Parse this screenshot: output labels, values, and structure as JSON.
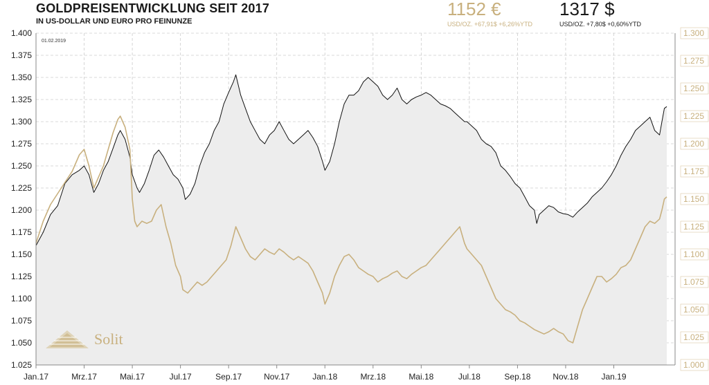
{
  "header": {
    "title": "GOLDPREISENTWICKLUNG SEIT 2017",
    "subtitle": "IN US-DOLLAR UND EURO PRO FEINUNZE",
    "eur_price": "1152 €",
    "eur_sub": "USD/OZ.  +67,91$  +6,26%YTD",
    "usd_price": "1317 $",
    "usd_sub": "USD/OZ.  +7,80$  +0,60%YTD",
    "date": "01.02.2019",
    "brand": "Solit"
  },
  "colors": {
    "usd": "#111111",
    "eur": "#c8b07e",
    "area": "#ededed",
    "grid": "#cccccc"
  },
  "chart_data": {
    "type": "line",
    "x_labels": [
      "Jan.17",
      "Mrz.17",
      "Mai.17",
      "Jul.17",
      "Sep.17",
      "Nov.17",
      "Jan.18",
      "Mrz.18",
      "Mai.18",
      "Jul.18",
      "Sep.18",
      "Nov.18",
      "Jan.19"
    ],
    "x_range": [
      0,
      25
    ],
    "y_left": {
      "ylim": [
        1.025,
        1.4
      ],
      "ticks": [
        "1.025",
        "1.050",
        "1.075",
        "1.100",
        "1.125",
        "1.150",
        "1.175",
        "1.200",
        "1.225",
        "1.250",
        "1.275",
        "1.300",
        "1.325",
        "1.350",
        "1.375",
        "1.400"
      ]
    },
    "y_right": {
      "ylim": [
        1.0,
        1.3
      ],
      "ticks": [
        "1.000",
        "1.025",
        "1.050",
        "1.075",
        "1.100",
        "1.125",
        "1.150",
        "1.175",
        "1.200",
        "1.225",
        "1.250",
        "1.275",
        "1.300"
      ]
    },
    "grid": true,
    "series": [
      {
        "axis": "left",
        "fill": true,
        "points": [
          [
            0,
            1160
          ],
          [
            0.3,
            1175
          ],
          [
            0.6,
            1195
          ],
          [
            0.9,
            1205
          ],
          [
            1.2,
            1230
          ],
          [
            1.5,
            1240
          ],
          [
            1.8,
            1245
          ],
          [
            2,
            1250
          ],
          [
            2.2,
            1240
          ],
          [
            2.4,
            1220
          ],
          [
            2.6,
            1230
          ],
          [
            2.8,
            1245
          ],
          [
            3,
            1255
          ],
          [
            3.2,
            1270
          ],
          [
            3.4,
            1285
          ],
          [
            3.5,
            1290
          ],
          [
            3.7,
            1280
          ],
          [
            3.9,
            1260
          ],
          [
            4.0,
            1240
          ],
          [
            4.2,
            1225
          ],
          [
            4.3,
            1220
          ],
          [
            4.5,
            1230
          ],
          [
            4.7,
            1245
          ],
          [
            4.9,
            1262
          ],
          [
            5.1,
            1268
          ],
          [
            5.3,
            1260
          ],
          [
            5.5,
            1250
          ],
          [
            5.7,
            1240
          ],
          [
            5.9,
            1235
          ],
          [
            6.1,
            1225
          ],
          [
            6.2,
            1212
          ],
          [
            6.4,
            1218
          ],
          [
            6.6,
            1230
          ],
          [
            6.8,
            1250
          ],
          [
            7.0,
            1265
          ],
          [
            7.2,
            1275
          ],
          [
            7.4,
            1290
          ],
          [
            7.6,
            1300
          ],
          [
            7.8,
            1320
          ],
          [
            8.0,
            1333
          ],
          [
            8.2,
            1345
          ],
          [
            8.3,
            1353
          ],
          [
            8.5,
            1330
          ],
          [
            8.7,
            1315
          ],
          [
            8.9,
            1300
          ],
          [
            9.1,
            1290
          ],
          [
            9.3,
            1280
          ],
          [
            9.5,
            1275
          ],
          [
            9.7,
            1285
          ],
          [
            9.9,
            1290
          ],
          [
            10.1,
            1300
          ],
          [
            10.3,
            1290
          ],
          [
            10.5,
            1280
          ],
          [
            10.7,
            1275
          ],
          [
            10.9,
            1280
          ],
          [
            11.1,
            1285
          ],
          [
            11.3,
            1290
          ],
          [
            11.5,
            1282
          ],
          [
            11.7,
            1272
          ],
          [
            11.9,
            1255
          ],
          [
            12.0,
            1245
          ],
          [
            12.2,
            1255
          ],
          [
            12.4,
            1275
          ],
          [
            12.6,
            1300
          ],
          [
            12.8,
            1320
          ],
          [
            13.0,
            1330
          ],
          [
            13.2,
            1330
          ],
          [
            13.4,
            1335
          ],
          [
            13.6,
            1345
          ],
          [
            13.8,
            1350
          ],
          [
            14.0,
            1345
          ],
          [
            14.2,
            1340
          ],
          [
            14.4,
            1330
          ],
          [
            14.6,
            1325
          ],
          [
            14.8,
            1330
          ],
          [
            15.0,
            1338
          ],
          [
            15.2,
            1325
          ],
          [
            15.4,
            1320
          ],
          [
            15.6,
            1325
          ],
          [
            15.8,
            1328
          ],
          [
            16.0,
            1330
          ],
          [
            16.2,
            1333
          ],
          [
            16.4,
            1330
          ],
          [
            16.6,
            1325
          ],
          [
            16.8,
            1320
          ],
          [
            17.0,
            1318
          ],
          [
            17.2,
            1315
          ],
          [
            17.4,
            1310
          ],
          [
            17.6,
            1305
          ],
          [
            17.8,
            1300
          ],
          [
            17.9,
            1300
          ],
          [
            18.1,
            1295
          ],
          [
            18.3,
            1290
          ],
          [
            18.5,
            1280
          ],
          [
            18.7,
            1275
          ],
          [
            18.9,
            1272
          ],
          [
            19.1,
            1265
          ],
          [
            19.3,
            1250
          ],
          [
            19.5,
            1245
          ],
          [
            19.7,
            1238
          ],
          [
            19.9,
            1230
          ],
          [
            20.1,
            1225
          ],
          [
            20.3,
            1215
          ],
          [
            20.5,
            1205
          ],
          [
            20.7,
            1200
          ],
          [
            20.8,
            1185
          ],
          [
            20.9,
            1195
          ],
          [
            21.1,
            1200
          ],
          [
            21.3,
            1205
          ],
          [
            21.5,
            1203
          ],
          [
            21.7,
            1198
          ],
          [
            21.9,
            1196
          ],
          [
            22.1,
            1195
          ],
          [
            22.3,
            1192
          ],
          [
            22.5,
            1198
          ],
          [
            22.7,
            1203
          ],
          [
            22.9,
            1208
          ],
          [
            23.1,
            1215
          ],
          [
            23.3,
            1220
          ],
          [
            23.5,
            1225
          ],
          [
            23.7,
            1232
          ],
          [
            23.9,
            1240
          ],
          [
            24.1,
            1250
          ],
          [
            24.3,
            1262
          ],
          [
            24.5,
            1272
          ],
          [
            24.7,
            1280
          ],
          [
            24.9,
            1290
          ],
          [
            25.1,
            1295
          ],
          [
            25.3,
            1300
          ],
          [
            25.5,
            1305
          ],
          [
            25.7,
            1290
          ],
          [
            25.9,
            1285
          ],
          [
            26.0,
            1300
          ],
          [
            26.1,
            1315
          ],
          [
            26.2,
            1317
          ]
        ],
        "value_scale": 0.001
      },
      {
        "axis": "right",
        "fill": false,
        "points": [
          [
            0,
            1110
          ],
          [
            0.3,
            1130
          ],
          [
            0.6,
            1145
          ],
          [
            0.9,
            1155
          ],
          [
            1.2,
            1165
          ],
          [
            1.5,
            1175
          ],
          [
            1.8,
            1190
          ],
          [
            2.0,
            1195
          ],
          [
            2.2,
            1180
          ],
          [
            2.4,
            1160
          ],
          [
            2.6,
            1170
          ],
          [
            2.8,
            1180
          ],
          [
            3.0,
            1195
          ],
          [
            3.2,
            1210
          ],
          [
            3.4,
            1222
          ],
          [
            3.5,
            1225
          ],
          [
            3.7,
            1215
          ],
          [
            3.9,
            1195
          ],
          [
            4.0,
            1150
          ],
          [
            4.1,
            1130
          ],
          [
            4.2,
            1125
          ],
          [
            4.4,
            1130
          ],
          [
            4.6,
            1128
          ],
          [
            4.8,
            1130
          ],
          [
            5.0,
            1140
          ],
          [
            5.2,
            1145
          ],
          [
            5.4,
            1125
          ],
          [
            5.6,
            1110
          ],
          [
            5.8,
            1090
          ],
          [
            6.0,
            1080
          ],
          [
            6.1,
            1068
          ],
          [
            6.3,
            1065
          ],
          [
            6.5,
            1070
          ],
          [
            6.7,
            1075
          ],
          [
            6.9,
            1072
          ],
          [
            7.1,
            1075
          ],
          [
            7.3,
            1080
          ],
          [
            7.5,
            1085
          ],
          [
            7.7,
            1090
          ],
          [
            7.9,
            1095
          ],
          [
            8.1,
            1108
          ],
          [
            8.3,
            1125
          ],
          [
            8.5,
            1115
          ],
          [
            8.7,
            1105
          ],
          [
            8.9,
            1098
          ],
          [
            9.1,
            1095
          ],
          [
            9.3,
            1100
          ],
          [
            9.5,
            1105
          ],
          [
            9.7,
            1102
          ],
          [
            9.9,
            1100
          ],
          [
            10.1,
            1105
          ],
          [
            10.3,
            1102
          ],
          [
            10.5,
            1098
          ],
          [
            10.7,
            1095
          ],
          [
            10.9,
            1098
          ],
          [
            11.1,
            1095
          ],
          [
            11.3,
            1092
          ],
          [
            11.5,
            1085
          ],
          [
            11.7,
            1075
          ],
          [
            11.9,
            1065
          ],
          [
            12.0,
            1055
          ],
          [
            12.2,
            1065
          ],
          [
            12.4,
            1080
          ],
          [
            12.6,
            1090
          ],
          [
            12.8,
            1098
          ],
          [
            13.0,
            1100
          ],
          [
            13.2,
            1095
          ],
          [
            13.4,
            1088
          ],
          [
            13.6,
            1085
          ],
          [
            13.8,
            1082
          ],
          [
            14.0,
            1080
          ],
          [
            14.2,
            1075
          ],
          [
            14.4,
            1078
          ],
          [
            14.6,
            1080
          ],
          [
            14.8,
            1083
          ],
          [
            15.0,
            1085
          ],
          [
            15.2,
            1080
          ],
          [
            15.4,
            1078
          ],
          [
            15.6,
            1082
          ],
          [
            15.8,
            1085
          ],
          [
            16.0,
            1088
          ],
          [
            16.2,
            1090
          ],
          [
            16.4,
            1095
          ],
          [
            16.6,
            1100
          ],
          [
            16.8,
            1105
          ],
          [
            17.0,
            1110
          ],
          [
            17.2,
            1115
          ],
          [
            17.4,
            1120
          ],
          [
            17.6,
            1125
          ],
          [
            17.8,
            1110
          ],
          [
            17.9,
            1105
          ],
          [
            18.1,
            1100
          ],
          [
            18.3,
            1095
          ],
          [
            18.5,
            1090
          ],
          [
            18.7,
            1080
          ],
          [
            18.9,
            1070
          ],
          [
            19.1,
            1060
          ],
          [
            19.3,
            1055
          ],
          [
            19.5,
            1050
          ],
          [
            19.7,
            1048
          ],
          [
            19.9,
            1045
          ],
          [
            20.1,
            1040
          ],
          [
            20.3,
            1038
          ],
          [
            20.5,
            1035
          ],
          [
            20.7,
            1032
          ],
          [
            20.9,
            1030
          ],
          [
            21.1,
            1028
          ],
          [
            21.3,
            1030
          ],
          [
            21.5,
            1033
          ],
          [
            21.7,
            1030
          ],
          [
            21.9,
            1028
          ],
          [
            22.1,
            1022
          ],
          [
            22.3,
            1020
          ],
          [
            22.5,
            1035
          ],
          [
            22.7,
            1050
          ],
          [
            22.9,
            1060
          ],
          [
            23.1,
            1070
          ],
          [
            23.3,
            1080
          ],
          [
            23.5,
            1080
          ],
          [
            23.7,
            1075
          ],
          [
            23.9,
            1078
          ],
          [
            24.1,
            1082
          ],
          [
            24.3,
            1088
          ],
          [
            24.5,
            1090
          ],
          [
            24.7,
            1095
          ],
          [
            24.9,
            1105
          ],
          [
            25.1,
            1115
          ],
          [
            25.3,
            1125
          ],
          [
            25.5,
            1130
          ],
          [
            25.7,
            1128
          ],
          [
            25.9,
            1132
          ],
          [
            26.0,
            1140
          ],
          [
            26.1,
            1150
          ],
          [
            26.2,
            1152
          ]
        ],
        "value_scale": 0.001
      }
    ]
  }
}
